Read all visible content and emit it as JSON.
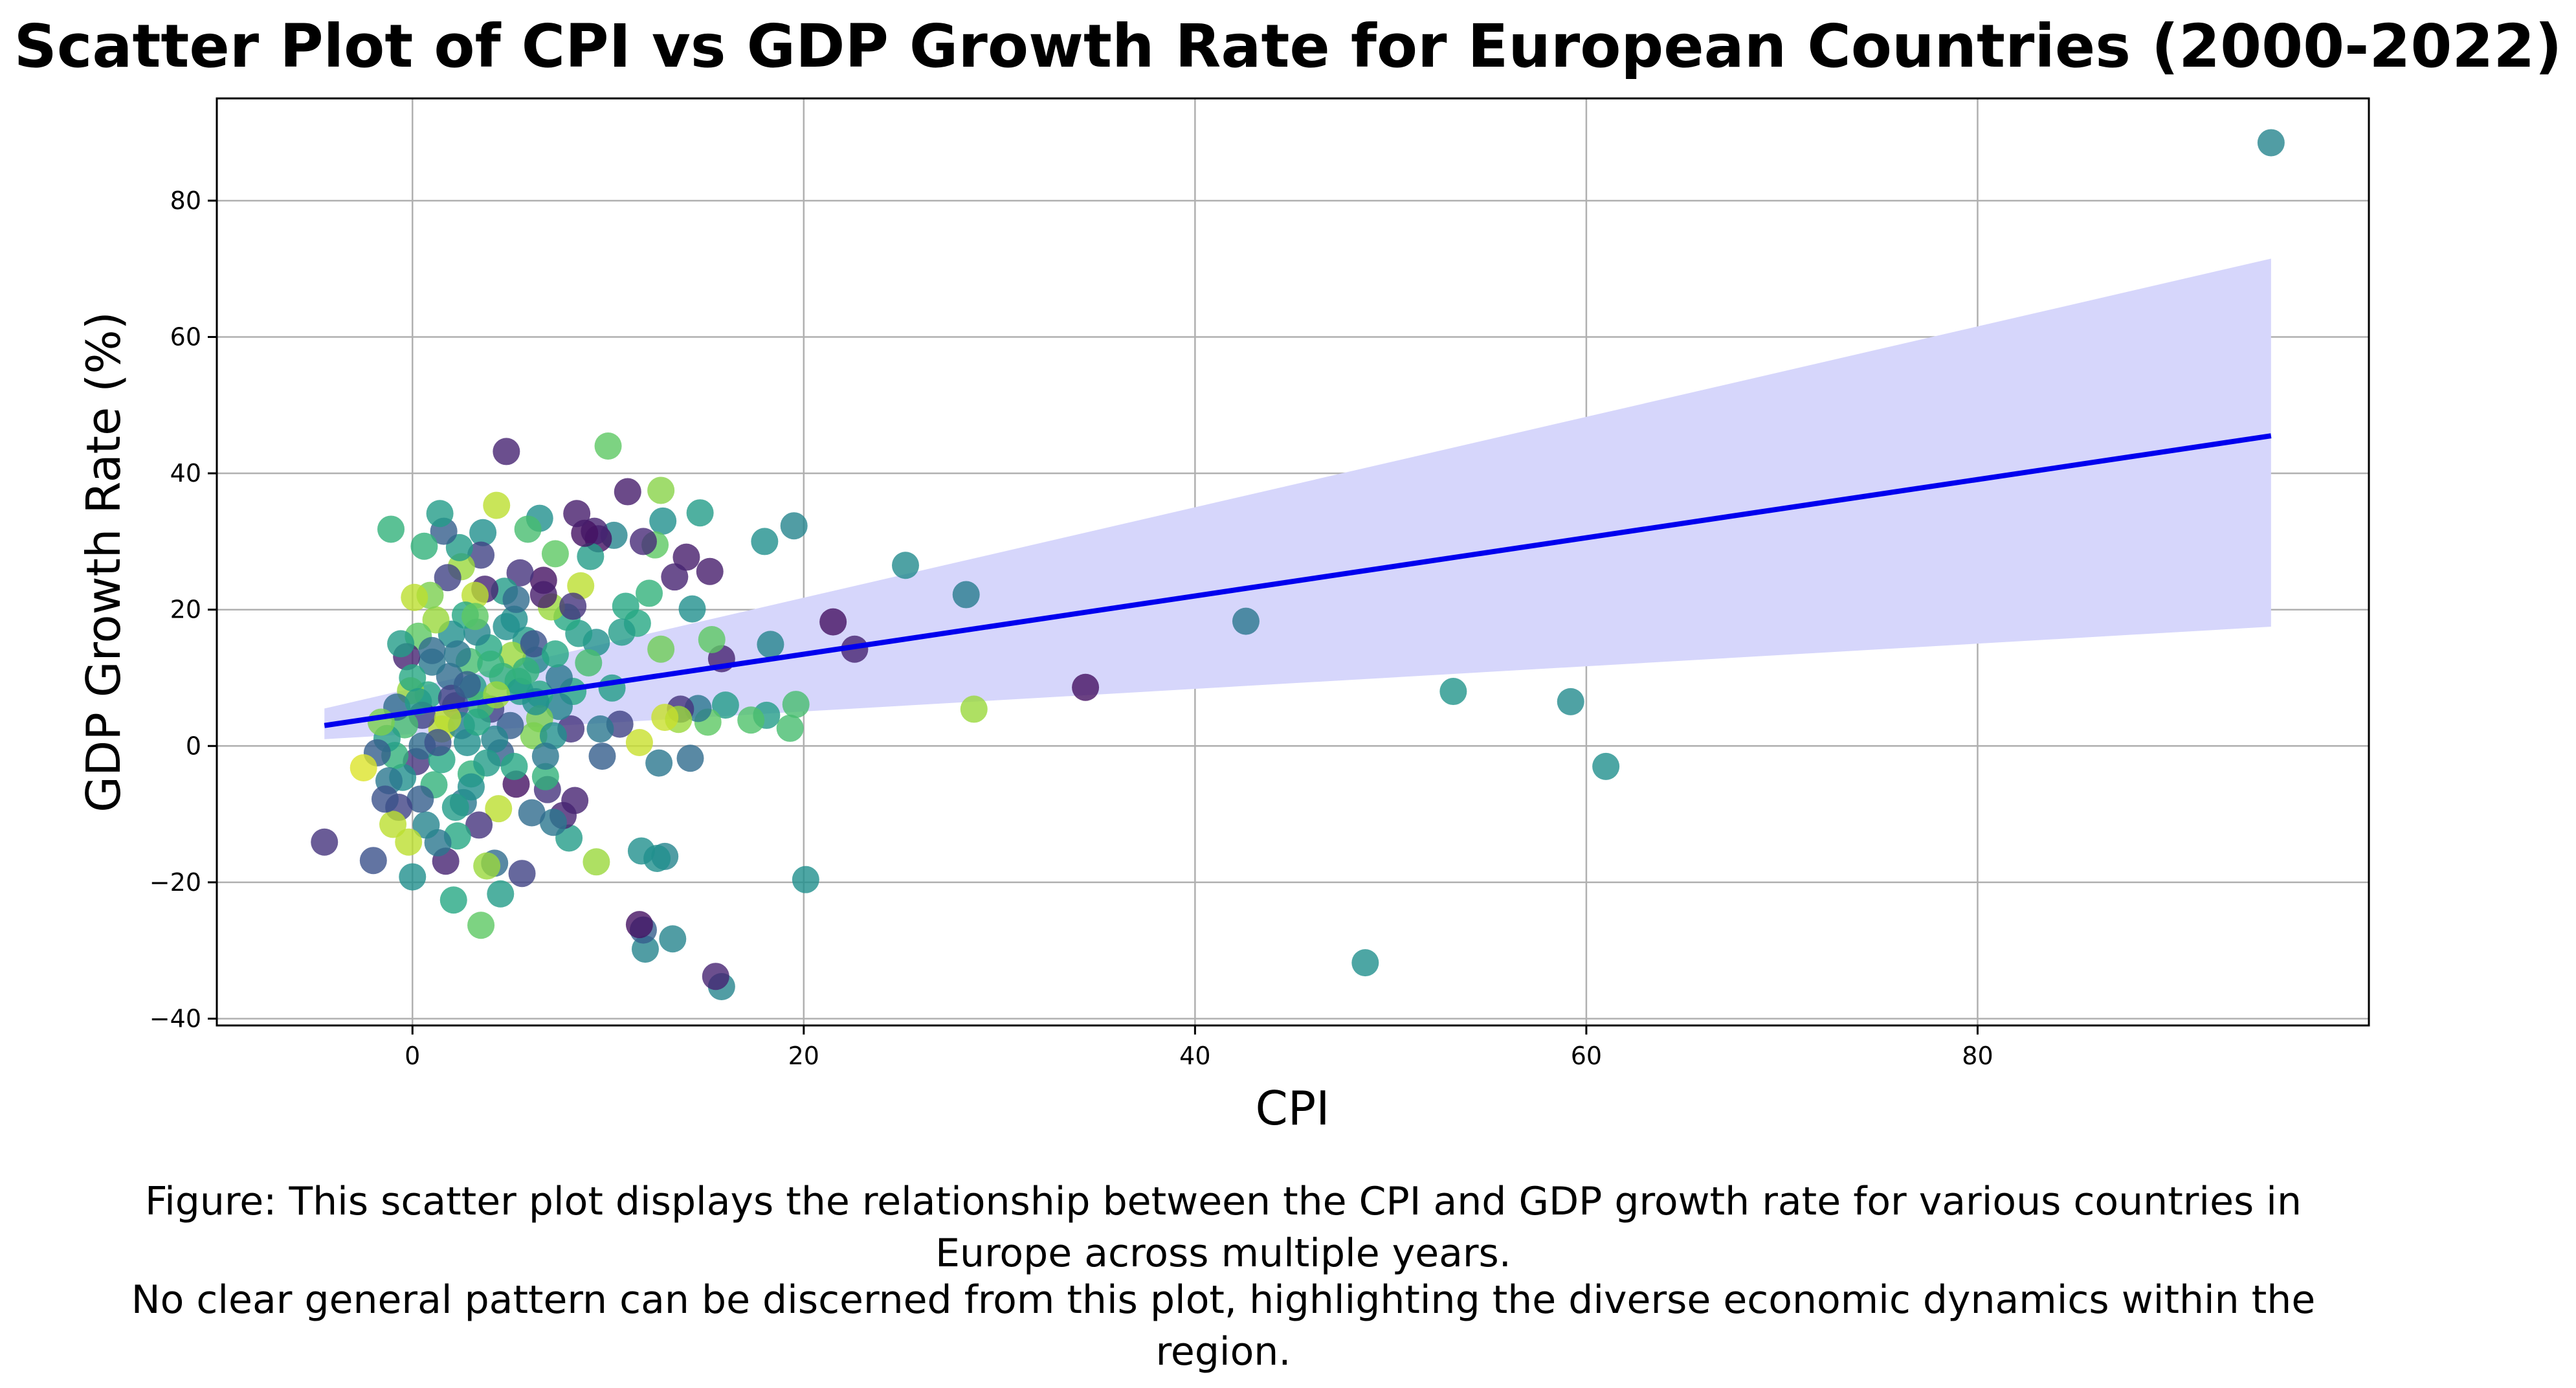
{
  "chart_data": {
    "type": "scatter",
    "title": "Scatter Plot of CPI vs GDP Growth Rate for European Countries (2000-2022)",
    "xlabel": "CPI",
    "ylabel": "GDP Growth Rate (%)",
    "xlim": [
      -10,
      100
    ],
    "ylim": [
      -41,
      95
    ],
    "xticks": [
      0,
      20,
      40,
      60,
      80
    ],
    "xtick_labels": [
      "0",
      "20",
      "40",
      "60",
      "80"
    ],
    "yticks": [
      -40,
      -20,
      0,
      20,
      40,
      60,
      80
    ],
    "ytick_labels": [
      "−40",
      "−20",
      "0",
      "20",
      "40",
      "60",
      "80"
    ],
    "grid": true,
    "legend": "none",
    "colormap": "viridis",
    "regression": {
      "x": [
        -4.5,
        95
      ],
      "y": [
        3.0,
        45.5
      ],
      "ci_lower": [
        1.0,
        17.5
      ],
      "ci_upper": [
        5.5,
        71.5
      ],
      "line_color": "#0000ee",
      "band_color": "#d6d6fb"
    },
    "points": [
      {
        "x": 95,
        "y": 88.5,
        "c": 0.45
      },
      {
        "x": 61,
        "y": -3,
        "c": 0.5
      },
      {
        "x": 59.2,
        "y": 6.5,
        "c": 0.48
      },
      {
        "x": 53.2,
        "y": 8,
        "c": 0.52
      },
      {
        "x": 48.7,
        "y": -31.8,
        "c": 0.5
      },
      {
        "x": 42.6,
        "y": 18.3,
        "c": 0.4
      },
      {
        "x": 34.4,
        "y": 8.6,
        "c": 0.05
      },
      {
        "x": 28.7,
        "y": 5.4,
        "c": 0.85
      },
      {
        "x": 28.3,
        "y": 22.2,
        "c": 0.42
      },
      {
        "x": 25.2,
        "y": 26.5,
        "c": 0.48
      },
      {
        "x": 22.6,
        "y": 14.2,
        "c": 0.1
      },
      {
        "x": 21.5,
        "y": 18.2,
        "c": 0.05
      },
      {
        "x": 20.1,
        "y": -19.6,
        "c": 0.5
      },
      {
        "x": 19.5,
        "y": 32.3,
        "c": 0.45
      },
      {
        "x": 19.6,
        "y": 6.1,
        "c": 0.7
      },
      {
        "x": 19.3,
        "y": 2.6,
        "c": 0.7
      },
      {
        "x": 18.3,
        "y": 14.9,
        "c": 0.45
      },
      {
        "x": 18,
        "y": 30,
        "c": 0.5
      },
      {
        "x": 18.1,
        "y": 4.5,
        "c": 0.55
      },
      {
        "x": 17.3,
        "y": 3.8,
        "c": 0.72
      },
      {
        "x": 15.8,
        "y": -35.3,
        "c": 0.45
      },
      {
        "x": 15.5,
        "y": -33.8,
        "c": 0.1
      },
      {
        "x": 15.8,
        "y": 12.8,
        "c": 0.1
      },
      {
        "x": 16,
        "y": 6,
        "c": 0.55
      },
      {
        "x": 15.3,
        "y": 15.6,
        "c": 0.75
      },
      {
        "x": 15.2,
        "y": 25.6,
        "c": 0.08
      },
      {
        "x": 15.1,
        "y": 3.5,
        "c": 0.75
      },
      {
        "x": 14.7,
        "y": 34.2,
        "c": 0.55
      },
      {
        "x": 14.6,
        "y": 5.5,
        "c": 0.4
      },
      {
        "x": 14.3,
        "y": 20.1,
        "c": 0.5
      },
      {
        "x": 14.2,
        "y": -1.8,
        "c": 0.35
      },
      {
        "x": 14,
        "y": 27.7,
        "c": 0.08
      },
      {
        "x": 13.7,
        "y": 5.4,
        "c": 0.15
      },
      {
        "x": 13.4,
        "y": 24.8,
        "c": 0.1
      },
      {
        "x": 13.3,
        "y": -28.3,
        "c": 0.45
      },
      {
        "x": 13.6,
        "y": 3.9,
        "c": 0.85
      },
      {
        "x": 12.9,
        "y": 4.2,
        "c": 0.92
      },
      {
        "x": 12.9,
        "y": -16.2,
        "c": 0.45
      },
      {
        "x": 12.5,
        "y": -16.5,
        "c": 0.5
      },
      {
        "x": 12.7,
        "y": 37.5,
        "c": 0.82
      },
      {
        "x": 12.7,
        "y": 14.2,
        "c": 0.78
      },
      {
        "x": 12.8,
        "y": 33,
        "c": 0.5
      },
      {
        "x": 12.4,
        "y": 29.5,
        "c": 0.75
      },
      {
        "x": 12.6,
        "y": -2.5,
        "c": 0.4
      },
      {
        "x": 12.1,
        "y": 22.4,
        "c": 0.65
      },
      {
        "x": 11.9,
        "y": -29.8,
        "c": 0.45
      },
      {
        "x": 11.8,
        "y": -27,
        "c": 0.3
      },
      {
        "x": 11.6,
        "y": -26.2,
        "c": 0.05
      },
      {
        "x": 11.7,
        "y": -15.4,
        "c": 0.5
      },
      {
        "x": 11.8,
        "y": 30,
        "c": 0.12
      },
      {
        "x": 11.5,
        "y": 18,
        "c": 0.6
      },
      {
        "x": 11.6,
        "y": 0.5,
        "c": 0.92
      },
      {
        "x": 11,
        "y": 37.3,
        "c": 0.08
      },
      {
        "x": 10.9,
        "y": 20.5,
        "c": 0.6
      },
      {
        "x": 10.7,
        "y": 16.7,
        "c": 0.55
      },
      {
        "x": 10.6,
        "y": 3.2,
        "c": 0.2
      },
      {
        "x": 10.3,
        "y": 30.9,
        "c": 0.45
      },
      {
        "x": 10.2,
        "y": 8.5,
        "c": 0.55
      },
      {
        "x": 10,
        "y": 44,
        "c": 0.75
      },
      {
        "x": 9.7,
        "y": -1.5,
        "c": 0.3
      },
      {
        "x": 9.6,
        "y": 2.5,
        "c": 0.4
      },
      {
        "x": 9.5,
        "y": 30.4,
        "c": 0.05
      },
      {
        "x": 9.4,
        "y": -17,
        "c": 0.85
      },
      {
        "x": 9.4,
        "y": 15.2,
        "c": 0.5
      },
      {
        "x": 9.3,
        "y": 31.5,
        "c": 0.1
      },
      {
        "x": 9.1,
        "y": 27.8,
        "c": 0.55
      },
      {
        "x": 9,
        "y": 12.2,
        "c": 0.7
      },
      {
        "x": 8.8,
        "y": 31.2,
        "c": 0.05
      },
      {
        "x": 8.6,
        "y": 23.5,
        "c": 0.9
      },
      {
        "x": 8.5,
        "y": 16.5,
        "c": 0.55
      },
      {
        "x": 8.4,
        "y": 34.1,
        "c": 0.08
      },
      {
        "x": 8.3,
        "y": -8,
        "c": 0.1
      },
      {
        "x": 8.2,
        "y": 8,
        "c": 0.6
      },
      {
        "x": 8.1,
        "y": 2.5,
        "c": 0.15
      },
      {
        "x": 8,
        "y": -13.5,
        "c": 0.55
      },
      {
        "x": 7.9,
        "y": 18.9,
        "c": 0.6
      },
      {
        "x": 7.7,
        "y": -10.2,
        "c": 0.1
      },
      {
        "x": 7.5,
        "y": 5.8,
        "c": 0.45
      },
      {
        "x": 7.3,
        "y": 28.2,
        "c": 0.75
      },
      {
        "x": 7.2,
        "y": -11.2,
        "c": 0.4
      },
      {
        "x": 7.1,
        "y": 20.4,
        "c": 0.85
      },
      {
        "x": 6.9,
        "y": -6.4,
        "c": 0.15
      },
      {
        "x": 6.8,
        "y": -4.5,
        "c": 0.65
      },
      {
        "x": 6.7,
        "y": 24.3,
        "c": 0.05
      },
      {
        "x": 6.7,
        "y": 22.2,
        "c": 0.08
      },
      {
        "x": 6.5,
        "y": 33.4,
        "c": 0.5
      },
      {
        "x": 6.5,
        "y": 7.6,
        "c": 0.6
      },
      {
        "x": 6.3,
        "y": 12.6,
        "c": 0.45
      },
      {
        "x": 6.2,
        "y": 1.5,
        "c": 0.8
      },
      {
        "x": 6.1,
        "y": -9.8,
        "c": 0.35
      },
      {
        "x": 5.9,
        "y": 31.8,
        "c": 0.7
      },
      {
        "x": 5.8,
        "y": 15.5,
        "c": 0.55
      },
      {
        "x": 5.6,
        "y": -18.7,
        "c": 0.2
      },
      {
        "x": 5.5,
        "y": 25.4,
        "c": 0.15
      },
      {
        "x": 5.4,
        "y": 9.5,
        "c": 0.6
      },
      {
        "x": 5.3,
        "y": -5.6,
        "c": 0.05
      },
      {
        "x": 5.2,
        "y": 18.6,
        "c": 0.5
      },
      {
        "x": 5.1,
        "y": 13.3,
        "c": 0.85
      },
      {
        "x": 5,
        "y": 3,
        "c": 0.3
      },
      {
        "x": 4.8,
        "y": 43.2,
        "c": 0.1
      },
      {
        "x": 4.7,
        "y": 22.7,
        "c": 0.55
      },
      {
        "x": 4.6,
        "y": 10.2,
        "c": 0.65
      },
      {
        "x": 4.5,
        "y": -21.7,
        "c": 0.55
      },
      {
        "x": 4.4,
        "y": -9.2,
        "c": 0.9
      },
      {
        "x": 4.3,
        "y": 35.3,
        "c": 0.9
      },
      {
        "x": 4.2,
        "y": -17.2,
        "c": 0.35
      },
      {
        "x": 4,
        "y": 5.4,
        "c": 0.2
      },
      {
        "x": 3.9,
        "y": 14.4,
        "c": 0.6
      },
      {
        "x": 3.8,
        "y": -17.6,
        "c": 0.85
      },
      {
        "x": 3.7,
        "y": 23,
        "c": 0.1
      },
      {
        "x": 3.6,
        "y": 31.3,
        "c": 0.5
      },
      {
        "x": 3.5,
        "y": -26.3,
        "c": 0.75
      },
      {
        "x": 3.5,
        "y": 28,
        "c": 0.2
      },
      {
        "x": 3.4,
        "y": -11.6,
        "c": 0.15
      },
      {
        "x": 3.3,
        "y": 16.7,
        "c": 0.45
      },
      {
        "x": 3.2,
        "y": 22.1,
        "c": 0.9
      },
      {
        "x": 3.1,
        "y": 8.6,
        "c": 0.55
      },
      {
        "x": 3,
        "y": -4.1,
        "c": 0.65
      },
      {
        "x": 2.9,
        "y": 12.4,
        "c": 0.7
      },
      {
        "x": 2.8,
        "y": 0.5,
        "c": 0.5
      },
      {
        "x": 2.7,
        "y": 19.2,
        "c": 0.6
      },
      {
        "x": 2.6,
        "y": -8.3,
        "c": 0.4
      },
      {
        "x": 2.5,
        "y": 26.3,
        "c": 0.85
      },
      {
        "x": 2.4,
        "y": 29.1,
        "c": 0.55
      },
      {
        "x": 2.3,
        "y": -13.2,
        "c": 0.6
      },
      {
        "x": 2.2,
        "y": 5.9,
        "c": 0.25
      },
      {
        "x": 2.1,
        "y": -22.6,
        "c": 0.6
      },
      {
        "x": 2,
        "y": 16.4,
        "c": 0.5
      },
      {
        "x": 1.9,
        "y": 10.2,
        "c": 0.35
      },
      {
        "x": 1.8,
        "y": 24.7,
        "c": 0.2
      },
      {
        "x": 1.7,
        "y": -16.9,
        "c": 0.1
      },
      {
        "x": 1.6,
        "y": 31.5,
        "c": 0.3
      },
      {
        "x": 1.5,
        "y": 2.5,
        "c": 0.9
      },
      {
        "x": 1.4,
        "y": 34.1,
        "c": 0.55
      },
      {
        "x": 1.3,
        "y": -14.2,
        "c": 0.4
      },
      {
        "x": 1.2,
        "y": 18.5,
        "c": 0.85
      },
      {
        "x": 1.1,
        "y": -5.7,
        "c": 0.65
      },
      {
        "x": 1,
        "y": 12.3,
        "c": 0.4
      },
      {
        "x": 0.9,
        "y": 22.1,
        "c": 0.8
      },
      {
        "x": 0.8,
        "y": 7.5,
        "c": 0.6
      },
      {
        "x": 0.7,
        "y": -11.6,
        "c": 0.45
      },
      {
        "x": 0.6,
        "y": 29.3,
        "c": 0.65
      },
      {
        "x": 0.5,
        "y": 4.5,
        "c": 0.2
      },
      {
        "x": 0.4,
        "y": -7.8,
        "c": 0.3
      },
      {
        "x": 0.3,
        "y": 16.1,
        "c": 0.75
      },
      {
        "x": 0.2,
        "y": -2.3,
        "c": 0.15
      },
      {
        "x": 0.1,
        "y": 21.8,
        "c": 0.9
      },
      {
        "x": 0,
        "y": -19.2,
        "c": 0.5
      },
      {
        "x": -0.1,
        "y": 8.1,
        "c": 0.85
      },
      {
        "x": -0.2,
        "y": -14.1,
        "c": 0.9
      },
      {
        "x": -0.3,
        "y": 13.1,
        "c": 0.1
      },
      {
        "x": -0.4,
        "y": 3.1,
        "c": 0.7
      },
      {
        "x": -0.5,
        "y": -4.6,
        "c": 0.5
      },
      {
        "x": -0.6,
        "y": 15,
        "c": 0.55
      },
      {
        "x": -0.7,
        "y": -9,
        "c": 0.2
      },
      {
        "x": -0.8,
        "y": 5.7,
        "c": 0.35
      },
      {
        "x": -0.9,
        "y": -1.4,
        "c": 0.65
      },
      {
        "x": -1,
        "y": -11.5,
        "c": 0.9
      },
      {
        "x": -1.1,
        "y": 31.8,
        "c": 0.65
      },
      {
        "x": -1.2,
        "y": -5.1,
        "c": 0.4
      },
      {
        "x": -1.3,
        "y": 1.1,
        "c": 0.55
      },
      {
        "x": -1.4,
        "y": -7.8,
        "c": 0.25
      },
      {
        "x": -1.6,
        "y": 3.5,
        "c": 0.8
      },
      {
        "x": -1.8,
        "y": -1,
        "c": 0.3
      },
      {
        "x": -2,
        "y": -16.8,
        "c": 0.25
      },
      {
        "x": -2.5,
        "y": -3.2,
        "c": 0.95
      },
      {
        "x": -4.5,
        "y": -14.1,
        "c": 0.15
      },
      {
        "x": 0.5,
        "y": 0,
        "c": 0.35
      },
      {
        "x": 1.5,
        "y": -2,
        "c": 0.6
      },
      {
        "x": 2.5,
        "y": 3,
        "c": 0.45
      },
      {
        "x": 3.5,
        "y": 6,
        "c": 0.7
      },
      {
        "x": 4.5,
        "y": -1,
        "c": 0.3
      },
      {
        "x": 5.5,
        "y": 8,
        "c": 0.55
      },
      {
        "x": 6.5,
        "y": 4,
        "c": 0.8
      },
      {
        "x": 7.5,
        "y": 10,
        "c": 0.4
      },
      {
        "x": 2,
        "y": 7,
        "c": 0.2
      },
      {
        "x": 3,
        "y": -6,
        "c": 0.5
      },
      {
        "x": 4,
        "y": 12,
        "c": 0.65
      },
      {
        "x": 1,
        "y": 14,
        "c": 0.35
      },
      {
        "x": 0,
        "y": 10,
        "c": 0.6
      },
      {
        "x": 2.2,
        "y": -9,
        "c": 0.55
      },
      {
        "x": 3.2,
        "y": 19,
        "c": 0.75
      },
      {
        "x": 4.2,
        "y": 1,
        "c": 0.45
      },
      {
        "x": 5.2,
        "y": -3,
        "c": 0.6
      },
      {
        "x": 6.2,
        "y": 15,
        "c": 0.25
      },
      {
        "x": 7.2,
        "y": 1.5,
        "c": 0.5
      },
      {
        "x": 8.2,
        "y": 20.5,
        "c": 0.15
      },
      {
        "x": 1.8,
        "y": 4,
        "c": 0.9
      },
      {
        "x": 2.8,
        "y": 9,
        "c": 0.3
      },
      {
        "x": 3.8,
        "y": -2.5,
        "c": 0.55
      },
      {
        "x": 4.8,
        "y": 17.5,
        "c": 0.5
      },
      {
        "x": 5.8,
        "y": 11,
        "c": 0.65
      },
      {
        "x": 6.8,
        "y": -1.5,
        "c": 0.4
      },
      {
        "x": 0.3,
        "y": 6.5,
        "c": 0.55
      },
      {
        "x": 1.3,
        "y": 0.5,
        "c": 0.25
      },
      {
        "x": 2.3,
        "y": 13.5,
        "c": 0.4
      },
      {
        "x": 3.3,
        "y": 3.5,
        "c": 0.6
      },
      {
        "x": 4.3,
        "y": 7.5,
        "c": 0.85
      },
      {
        "x": 5.3,
        "y": 21.5,
        "c": 0.35
      },
      {
        "x": 6.3,
        "y": 6.5,
        "c": 0.5
      },
      {
        "x": 7.3,
        "y": 13.5,
        "c": 0.6
      }
    ]
  },
  "caption": {
    "line1": "Figure: This scatter plot displays the relationship between the CPI and GDP growth rate for various countries in",
    "line2": "Europe across multiple years.",
    "line3": "No clear general pattern can be discerned from this plot, highlighting the diverse economic dynamics within the",
    "line4": "region."
  }
}
